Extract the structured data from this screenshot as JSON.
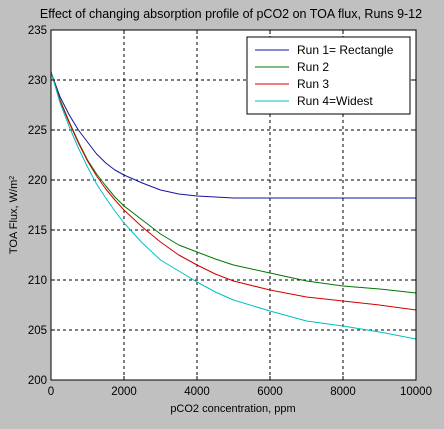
{
  "chart_data": {
    "type": "line",
    "title": "Effect of changing absorption profile of pCO2 on TOA flux, Runs 9-12",
    "xlabel": "pCO2 concentration, ppm",
    "ylabel_main": "TOA Flux, W/m",
    "ylabel_sup": "2",
    "xlim": [
      0,
      10000
    ],
    "ylim": [
      200,
      235
    ],
    "xticks": [
      0,
      2000,
      4000,
      6000,
      8000,
      10000
    ],
    "yticks": [
      200,
      205,
      210,
      215,
      220,
      225,
      230,
      235
    ],
    "grid": true,
    "legend_position": "top-right",
    "colors": {
      "background": "#c0c0c0",
      "plot_area": "#ffffff"
    },
    "series": [
      {
        "name": "Run 1= Rectangle",
        "color": "#1414a0",
        "points": [
          [
            0,
            230.8
          ],
          [
            250,
            228.3
          ],
          [
            500,
            226.5
          ],
          [
            750,
            225.0
          ],
          [
            1000,
            223.8
          ],
          [
            1250,
            222.6
          ],
          [
            1500,
            221.7
          ],
          [
            1750,
            221.0
          ],
          [
            2000,
            220.5
          ],
          [
            2500,
            219.7
          ],
          [
            3000,
            219.0
          ],
          [
            3500,
            218.6
          ],
          [
            4000,
            218.4
          ],
          [
            4500,
            218.3
          ],
          [
            5000,
            218.2
          ],
          [
            6000,
            218.2
          ],
          [
            7000,
            218.2
          ],
          [
            8000,
            218.2
          ],
          [
            9000,
            218.2
          ],
          [
            10000,
            218.2
          ]
        ]
      },
      {
        "name": "Run 2",
        "color": "#007800",
        "points": [
          [
            0,
            230.8
          ],
          [
            250,
            228.0
          ],
          [
            500,
            225.8
          ],
          [
            750,
            223.8
          ],
          [
            1000,
            222.0
          ],
          [
            1250,
            220.6
          ],
          [
            1500,
            219.4
          ],
          [
            1750,
            218.3
          ],
          [
            2000,
            217.4
          ],
          [
            2500,
            216.0
          ],
          [
            3000,
            214.6
          ],
          [
            3500,
            213.5
          ],
          [
            4000,
            212.8
          ],
          [
            4500,
            212.1
          ],
          [
            5000,
            211.5
          ],
          [
            6000,
            210.7
          ],
          [
            7000,
            209.9
          ],
          [
            8000,
            209.4
          ],
          [
            9000,
            209.1
          ],
          [
            10000,
            208.7
          ]
        ]
      },
      {
        "name": "Run 3",
        "color": "#d00000",
        "points": [
          [
            0,
            230.8
          ],
          [
            250,
            227.9
          ],
          [
            500,
            225.7
          ],
          [
            750,
            223.7
          ],
          [
            1000,
            221.9
          ],
          [
            1250,
            220.4
          ],
          [
            1500,
            219.1
          ],
          [
            1750,
            218.0
          ],
          [
            2000,
            217.0
          ],
          [
            2500,
            215.3
          ],
          [
            3000,
            213.8
          ],
          [
            3500,
            212.5
          ],
          [
            4000,
            211.5
          ],
          [
            4500,
            210.6
          ],
          [
            5000,
            209.9
          ],
          [
            6000,
            209.0
          ],
          [
            7000,
            208.3
          ],
          [
            8000,
            207.9
          ],
          [
            9000,
            207.5
          ],
          [
            10000,
            207.0
          ]
        ]
      },
      {
        "name": "Run 4=Widest",
        "color": "#00c0c0",
        "points": [
          [
            0,
            230.8
          ],
          [
            250,
            227.7
          ],
          [
            500,
            225.3
          ],
          [
            750,
            223.2
          ],
          [
            1000,
            221.3
          ],
          [
            1250,
            219.6
          ],
          [
            1500,
            218.2
          ],
          [
            1750,
            216.9
          ],
          [
            2000,
            215.7
          ],
          [
            2500,
            213.7
          ],
          [
            3000,
            212.0
          ],
          [
            3500,
            210.9
          ],
          [
            4000,
            209.8
          ],
          [
            4500,
            208.8
          ],
          [
            5000,
            208.0
          ],
          [
            6000,
            206.9
          ],
          [
            7000,
            205.9
          ],
          [
            8000,
            205.4
          ],
          [
            9000,
            204.8
          ],
          [
            10000,
            204.1
          ]
        ]
      }
    ]
  }
}
